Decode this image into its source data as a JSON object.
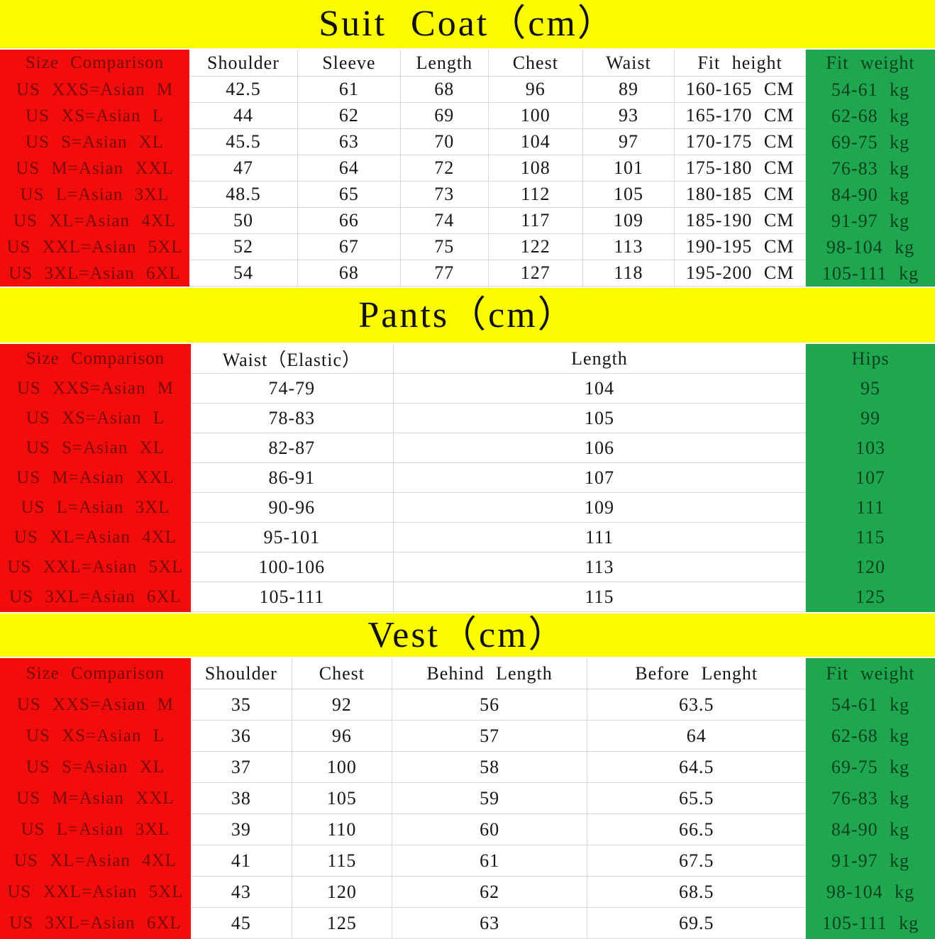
{
  "colors": {
    "yellow": "#fcfc00",
    "red": "#f20c0c",
    "red_text": "#7a0b0b",
    "green": "#1fa750",
    "green_text": "#0e401e"
  },
  "tables": [
    {
      "title": "Suit Coat（cm）",
      "corner_header": "Size Comparison",
      "columns": [
        "Shoulder",
        "Sleeve",
        "Length",
        "Chest",
        "Waist",
        "Fit height",
        "Fit weight"
      ],
      "sizes": [
        "US XXS=Asian M",
        "US XS=Asian L",
        "US S=Asian XL",
        "US M=Asian XXL",
        "US L=Asian 3XL",
        "US XL=Asian 4XL",
        "US XXL=Asian 5XL",
        "US 3XL=Asian 6XL"
      ],
      "rows": [
        [
          "42.5",
          "61",
          "68",
          "96",
          "89",
          "160-165 CM",
          "54-61 kg"
        ],
        [
          "44",
          "62",
          "69",
          "100",
          "93",
          "165-170 CM",
          "62-68 kg"
        ],
        [
          "45.5",
          "63",
          "70",
          "104",
          "97",
          "170-175 CM",
          "69-75 kg"
        ],
        [
          "47",
          "64",
          "72",
          "108",
          "101",
          "175-180 CM",
          "76-83 kg"
        ],
        [
          "48.5",
          "65",
          "73",
          "112",
          "105",
          "180-185 CM",
          "84-90 kg"
        ],
        [
          "50",
          "66",
          "74",
          "117",
          "109",
          "185-190 CM",
          "91-97 kg"
        ],
        [
          "52",
          "67",
          "75",
          "122",
          "113",
          "190-195 CM",
          "98-104 kg"
        ],
        [
          "54",
          "68",
          "77",
          "127",
          "118",
          "195-200 CM",
          "105-111 kg"
        ]
      ]
    },
    {
      "title": "Pants（cm）",
      "corner_header": "Size Comparison",
      "columns": [
        "Waist（Elastic）",
        "Length",
        "Hips"
      ],
      "sizes": [
        "US XXS=Asian M",
        "US XS=Asian L",
        "US S=Asian XL",
        "US M=Asian XXL",
        "US L=Asian 3XL",
        "US XL=Asian 4XL",
        "US XXL=Asian 5XL",
        "US 3XL=Asian 6XL"
      ],
      "rows": [
        [
          "74-79",
          "104",
          "95"
        ],
        [
          "78-83",
          "105",
          "99"
        ],
        [
          "82-87",
          "106",
          "103"
        ],
        [
          "86-91",
          "107",
          "107"
        ],
        [
          "90-96",
          "109",
          "111"
        ],
        [
          "95-101",
          "111",
          "115"
        ],
        [
          "100-106",
          "113",
          "120"
        ],
        [
          "105-111",
          "115",
          "125"
        ]
      ]
    },
    {
      "title": "Vest（cm）",
      "corner_header": "Size Comparison",
      "columns": [
        "Shoulder",
        "Chest",
        "Behind Length",
        "Before Lenght",
        "Fit weight"
      ],
      "sizes": [
        "US XXS=Asian M",
        "US XS=Asian L",
        "US S=Asian XL",
        "US M=Asian XXL",
        "US L=Asian 3XL",
        "US XL=Asian 4XL",
        "US XXL=Asian 5XL",
        "US 3XL=Asian 6XL"
      ],
      "rows": [
        [
          "35",
          "92",
          "56",
          "63.5",
          "54-61 kg"
        ],
        [
          "36",
          "96",
          "57",
          "64",
          "62-68 kg"
        ],
        [
          "37",
          "100",
          "58",
          "64.5",
          "69-75 kg"
        ],
        [
          "38",
          "105",
          "59",
          "65.5",
          "76-83 kg"
        ],
        [
          "39",
          "110",
          "60",
          "66.5",
          "84-90 kg"
        ],
        [
          "41",
          "115",
          "61",
          "67.5",
          "91-97 kg"
        ],
        [
          "43",
          "120",
          "62",
          "68.5",
          "98-104 kg"
        ],
        [
          "45",
          "125",
          "63",
          "69.5",
          "105-111 kg"
        ]
      ]
    }
  ]
}
